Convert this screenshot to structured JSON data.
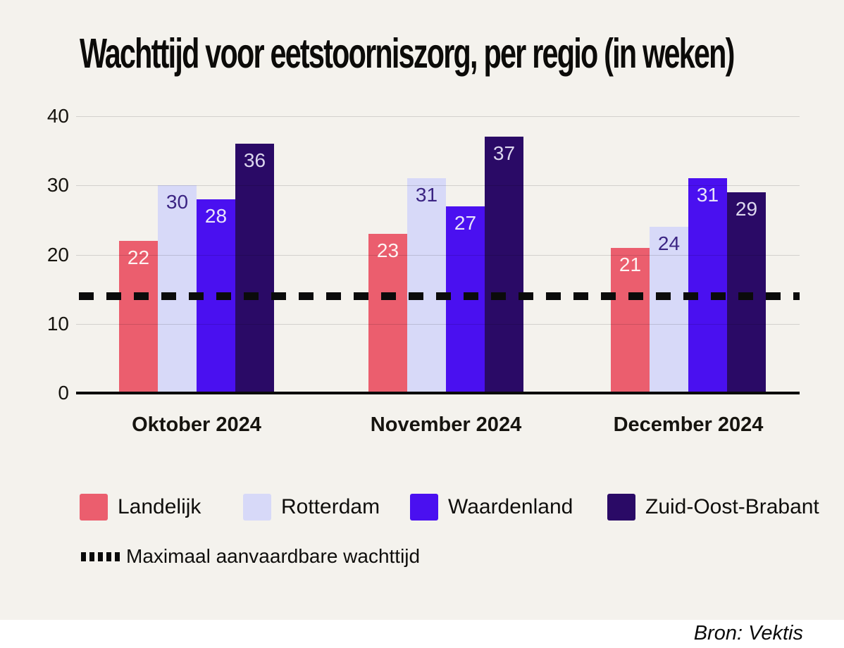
{
  "title": "Wachttijd voor eetstoorniszorg, per regio (in weken)",
  "source": "Bron: Vektis",
  "colors": {
    "panel_background": "#F4F2ED",
    "page_background": "#FFFFFF",
    "grid": "#00000022",
    "axis": "#0B0B0B",
    "dashed_line": "#0B0B0B",
    "text": "#16140F"
  },
  "chart_data": {
    "type": "bar",
    "title": "Wachttijd voor eetstoorniszorg, per regio (in weken)",
    "categories": [
      "Oktober 2024",
      "November 2024",
      "December 2024"
    ],
    "series": [
      {
        "name": "Landelijk",
        "color": "#EB5E6E",
        "label_color": "#FDF3F2",
        "values": [
          22,
          23,
          21
        ]
      },
      {
        "name": "Rotterdam",
        "color": "#D7D9F8",
        "label_color": "#3B2483",
        "values": [
          30,
          31,
          24
        ]
      },
      {
        "name": "Waardenland",
        "color": "#4A10F0",
        "label_color": "#E8E4FA",
        "values": [
          28,
          27,
          31
        ]
      },
      {
        "name": "Zuid-Oost-Brabant",
        "color": "#2A0A66",
        "label_color": "#DCD7EE",
        "values": [
          36,
          37,
          29
        ]
      }
    ],
    "reference_line": {
      "label": "Maximaal aanvaardbare wachttijd",
      "value": 14
    },
    "y_ticks": [
      0,
      10,
      20,
      30,
      40
    ],
    "ylim": [
      0,
      40
    ],
    "xlabel": "",
    "ylabel": "",
    "grid": "horizontal",
    "legend_position": "bottom",
    "value_labels": "inside-top"
  }
}
